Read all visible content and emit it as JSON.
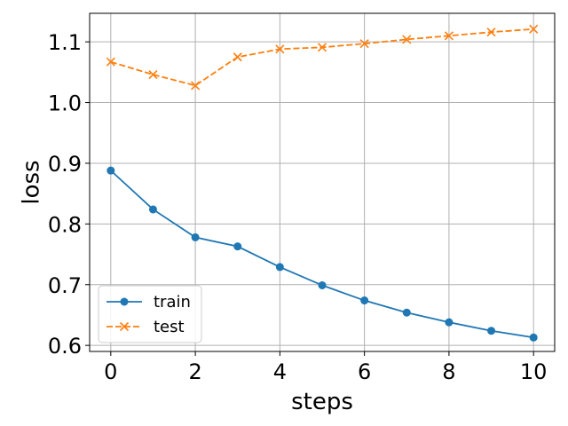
{
  "chart_data": {
    "type": "line",
    "xlabel": "steps",
    "ylabel": "loss",
    "xlim": [
      -0.5,
      10.5
    ],
    "ylim": [
      0.59,
      1.147
    ],
    "xticks": [
      0,
      2,
      4,
      6,
      8,
      10
    ],
    "yticks": [
      0.6,
      0.7,
      0.8,
      0.9,
      1.0,
      1.1
    ],
    "ytick_labels": [
      "0.6",
      "0.7",
      "0.8",
      "0.9",
      "1.0",
      "1.1"
    ],
    "grid": true,
    "legend_position": "lower-left",
    "x": [
      0,
      1,
      2,
      3,
      4,
      5,
      6,
      7,
      8,
      9,
      10
    ],
    "series": [
      {
        "name": "train",
        "color": "#1f77b4",
        "linestyle": "solid",
        "marker": "circle",
        "values": [
          0.888,
          0.824,
          0.778,
          0.763,
          0.729,
          0.699,
          0.674,
          0.654,
          0.638,
          0.624,
          0.613
        ]
      },
      {
        "name": "test",
        "color": "#ff7f0e",
        "linestyle": "dashed",
        "marker": "x",
        "values": [
          1.067,
          1.046,
          1.028,
          1.075,
          1.088,
          1.091,
          1.097,
          1.104,
          1.11,
          1.116,
          1.121
        ]
      }
    ]
  }
}
